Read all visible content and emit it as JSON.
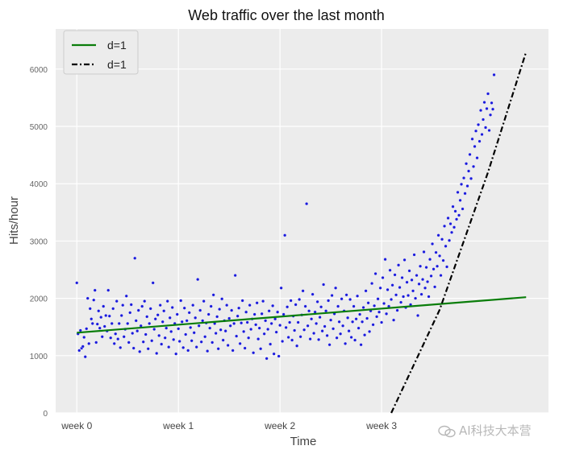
{
  "chart_data": {
    "type": "scatter",
    "title": "Web traffic over the last month",
    "xlabel": "Time",
    "ylabel": "Hits/hour",
    "x_ticks": [
      {
        "value": 0,
        "label": "week 0"
      },
      {
        "value": 168,
        "label": "week 1"
      },
      {
        "value": 336,
        "label": "week 2"
      },
      {
        "value": 504,
        "label": "week 3"
      }
    ],
    "y_ticks": [
      0,
      1000,
      2000,
      3000,
      4000,
      5000,
      6000
    ],
    "xlim": [
      -35,
      780
    ],
    "ylim": [
      0,
      6700
    ],
    "grid": true,
    "legend_position": "top-left",
    "scatter_color": "#1a1adb",
    "points": [
      [
        0,
        2270
      ],
      [
        2,
        1380
      ],
      [
        4,
        1090
      ],
      [
        6,
        1440
      ],
      [
        8,
        1130
      ],
      [
        10,
        1160
      ],
      [
        12,
        1320
      ],
      [
        14,
        980
      ],
      [
        16,
        1470
      ],
      [
        18,
        2000
      ],
      [
        20,
        1210
      ],
      [
        22,
        1820
      ],
      [
        24,
        1640
      ],
      [
        26,
        1560
      ],
      [
        28,
        1970
      ],
      [
        30,
        2140
      ],
      [
        32,
        1230
      ],
      [
        34,
        1550
      ],
      [
        36,
        1780
      ],
      [
        38,
        1480
      ],
      [
        40,
        1670
      ],
      [
        42,
        1330
      ],
      [
        44,
        1860
      ],
      [
        46,
        1510
      ],
      [
        48,
        1700
      ],
      [
        50,
        1430
      ],
      [
        52,
        2140
      ],
      [
        54,
        1690
      ],
      [
        56,
        1310
      ],
      [
        58,
        1560
      ],
      [
        60,
        1820
      ],
      [
        62,
        1210
      ],
      [
        64,
        1380
      ],
      [
        66,
        1950
      ],
      [
        68,
        1290
      ],
      [
        70,
        1560
      ],
      [
        72,
        1140
      ],
      [
        74,
        1700
      ],
      [
        76,
        1880
      ],
      [
        78,
        1330
      ],
      [
        80,
        1460
      ],
      [
        82,
        2040
      ],
      [
        84,
        1560
      ],
      [
        86,
        1230
      ],
      [
        88,
        1750
      ],
      [
        90,
        1890
      ],
      [
        92,
        1390
      ],
      [
        94,
        1130
      ],
      [
        96,
        2700
      ],
      [
        98,
        1610
      ],
      [
        100,
        1430
      ],
      [
        102,
        1790
      ],
      [
        104,
        1070
      ],
      [
        106,
        1520
      ],
      [
        108,
        1860
      ],
      [
        110,
        1240
      ],
      [
        112,
        1950
      ],
      [
        114,
        1370
      ],
      [
        116,
        1680
      ],
      [
        118,
        1120
      ],
      [
        120,
        1560
      ],
      [
        122,
        1820
      ],
      [
        124,
        1260
      ],
      [
        126,
        2270
      ],
      [
        128,
        1460
      ],
      [
        130,
        1640
      ],
      [
        132,
        1040
      ],
      [
        134,
        1710
      ],
      [
        136,
        1350
      ],
      [
        138,
        1880
      ],
      [
        140,
        1200
      ],
      [
        142,
        1590
      ],
      [
        144,
        1780
      ],
      [
        146,
        1310
      ],
      [
        148,
        1480
      ],
      [
        150,
        1950
      ],
      [
        152,
        1150
      ],
      [
        154,
        1660
      ],
      [
        156,
        1420
      ],
      [
        158,
        1840
      ],
      [
        160,
        1280
      ],
      [
        162,
        1560
      ],
      [
        164,
        1030
      ],
      [
        166,
        1720
      ],
      [
        168,
        1470
      ],
      [
        170,
        1250
      ],
      [
        172,
        1960
      ],
      [
        174,
        1590
      ],
      [
        176,
        1140
      ],
      [
        178,
        1830
      ],
      [
        180,
        1370
      ],
      [
        182,
        1610
      ],
      [
        184,
        1090
      ],
      [
        186,
        1750
      ],
      [
        188,
        1490
      ],
      [
        190,
        1260
      ],
      [
        192,
        1880
      ],
      [
        194,
        1400
      ],
      [
        196,
        1660
      ],
      [
        198,
        1150
      ],
      [
        200,
        2330
      ],
      [
        202,
        1520
      ],
      [
        204,
        1790
      ],
      [
        206,
        1240
      ],
      [
        208,
        1610
      ],
      [
        210,
        1950
      ],
      [
        212,
        1330
      ],
      [
        214,
        1570
      ],
      [
        216,
        1080
      ],
      [
        218,
        1720
      ],
      [
        220,
        1480
      ],
      [
        222,
        1860
      ],
      [
        224,
        1230
      ],
      [
        226,
        2060
      ],
      [
        228,
        1560
      ],
      [
        230,
        1390
      ],
      [
        232,
        1680
      ],
      [
        234,
        1120
      ],
      [
        236,
        1810
      ],
      [
        238,
        1450
      ],
      [
        240,
        1990
      ],
      [
        242,
        1270
      ],
      [
        244,
        1610
      ],
      [
        246,
        1430
      ],
      [
        248,
        1880
      ],
      [
        250,
        1180
      ],
      [
        252,
        1650
      ],
      [
        254,
        1520
      ],
      [
        256,
        1790
      ],
      [
        258,
        1090
      ],
      [
        260,
        1560
      ],
      [
        262,
        2400
      ],
      [
        264,
        1340
      ],
      [
        266,
        1690
      ],
      [
        268,
        1830
      ],
      [
        270,
        1210
      ],
      [
        272,
        1570
      ],
      [
        274,
        1960
      ],
      [
        276,
        1420
      ],
      [
        278,
        1130
      ],
      [
        280,
        1760
      ],
      [
        282,
        1580
      ],
      [
        284,
        1310
      ],
      [
        286,
        1880
      ],
      [
        288,
        1460
      ],
      [
        290,
        1640
      ],
      [
        292,
        1050
      ],
      [
        294,
        1720
      ],
      [
        296,
        1540
      ],
      [
        298,
        1920
      ],
      [
        300,
        1290
      ],
      [
        302,
        1480
      ],
      [
        304,
        1120
      ],
      [
        306,
        1730
      ],
      [
        308,
        1950
      ],
      [
        310,
        1380
      ],
      [
        312,
        1610
      ],
      [
        314,
        950
      ],
      [
        316,
        1460
      ],
      [
        318,
        1780
      ],
      [
        320,
        1200
      ],
      [
        322,
        1560
      ],
      [
        324,
        1870
      ],
      [
        326,
        1030
      ],
      [
        328,
        1640
      ],
      [
        330,
        1410
      ],
      [
        332,
        1760
      ],
      [
        334,
        990
      ],
      [
        336,
        1530
      ],
      [
        338,
        2180
      ],
      [
        340,
        1250
      ],
      [
        342,
        1720
      ],
      [
        344,
        3100
      ],
      [
        346,
        1490
      ],
      [
        348,
        1850
      ],
      [
        350,
        1320
      ],
      [
        352,
        1580
      ],
      [
        354,
        1960
      ],
      [
        356,
        1270
      ],
      [
        358,
        1690
      ],
      [
        360,
        1440
      ],
      [
        362,
        1890
      ],
      [
        364,
        1170
      ],
      [
        366,
        1580
      ],
      [
        368,
        1980
      ],
      [
        370,
        1330
      ],
      [
        372,
        1710
      ],
      [
        374,
        2130
      ],
      [
        376,
        1450
      ],
      [
        378,
        1860
      ],
      [
        380,
        3650
      ],
      [
        382,
        1520
      ],
      [
        384,
        1780
      ],
      [
        386,
        1290
      ],
      [
        388,
        1640
      ],
      [
        390,
        2070
      ],
      [
        392,
        1390
      ],
      [
        394,
        1760
      ],
      [
        396,
        1560
      ],
      [
        398,
        1940
      ],
      [
        400,
        1280
      ],
      [
        402,
        1670
      ],
      [
        404,
        1850
      ],
      [
        406,
        1430
      ],
      [
        408,
        2240
      ],
      [
        410,
        1510
      ],
      [
        412,
        1780
      ],
      [
        414,
        1350
      ],
      [
        416,
        1960
      ],
      [
        418,
        1190
      ],
      [
        420,
        1620
      ],
      [
        422,
        2050
      ],
      [
        424,
        1470
      ],
      [
        426,
        1730
      ],
      [
        428,
        2180
      ],
      [
        430,
        1310
      ],
      [
        432,
        1860
      ],
      [
        434,
        1590
      ],
      [
        436,
        1380
      ],
      [
        438,
        1990
      ],
      [
        440,
        1520
      ],
      [
        442,
        1780
      ],
      [
        444,
        1210
      ],
      [
        446,
        2060
      ],
      [
        448,
        1660
      ],
      [
        450,
        1430
      ],
      [
        452,
        1980
      ],
      [
        454,
        1320
      ],
      [
        456,
        1590
      ],
      [
        458,
        1860
      ],
      [
        460,
        1270
      ],
      [
        462,
        1640
      ],
      [
        464,
        2040
      ],
      [
        466,
        1480
      ],
      [
        468,
        1720
      ],
      [
        470,
        1190
      ],
      [
        472,
        1590
      ],
      [
        474,
        1840
      ],
      [
        476,
        1360
      ],
      [
        478,
        2130
      ],
      [
        480,
        1650
      ],
      [
        482,
        1920
      ],
      [
        484,
        1420
      ],
      [
        486,
        1780
      ],
      [
        488,
        2260
      ],
      [
        490,
        1540
      ],
      [
        492,
        1870
      ],
      [
        494,
        2430
      ],
      [
        496,
        1680
      ],
      [
        498,
        1990
      ],
      [
        500,
        1760
      ],
      [
        502,
        2180
      ],
      [
        504,
        1580
      ],
      [
        506,
        2360
      ],
      [
        508,
        1910
      ],
      [
        510,
        2680
      ],
      [
        512,
        1730
      ],
      [
        514,
        2150
      ],
      [
        516,
        1860
      ],
      [
        518,
        2490
      ],
      [
        520,
        1980
      ],
      [
        522,
        2230
      ],
      [
        524,
        1620
      ],
      [
        526,
        2410
      ],
      [
        528,
        2060
      ],
      [
        530,
        1790
      ],
      [
        532,
        2580
      ],
      [
        534,
        2190
      ],
      [
        536,
        1930
      ],
      [
        538,
        2360
      ],
      [
        540,
        2030
      ],
      [
        542,
        2670
      ],
      [
        544,
        1840
      ],
      [
        546,
        2280
      ],
      [
        548,
        2050
      ],
      [
        550,
        2480
      ],
      [
        552,
        1890
      ],
      [
        554,
        2320
      ],
      [
        556,
        2130
      ],
      [
        558,
        2760
      ],
      [
        560,
        2000
      ],
      [
        562,
        2400
      ],
      [
        564,
        1700
      ],
      [
        566,
        2250
      ],
      [
        568,
        2560
      ],
      [
        570,
        2070
      ],
      [
        572,
        2330
      ],
      [
        574,
        2810
      ],
      [
        576,
        2180
      ],
      [
        578,
        2540
      ],
      [
        580,
        2290
      ],
      [
        582,
        2030
      ],
      [
        584,
        2680
      ],
      [
        586,
        2390
      ],
      [
        588,
        2950
      ],
      [
        590,
        2510
      ],
      [
        592,
        2200
      ],
      [
        594,
        2800
      ],
      [
        596,
        2560
      ],
      [
        598,
        3100
      ],
      [
        600,
        2740
      ],
      [
        602,
        2400
      ],
      [
        604,
        3030
      ],
      [
        606,
        2660
      ],
      [
        608,
        3260
      ],
      [
        610,
        2910
      ],
      [
        612,
        2550
      ],
      [
        614,
        3400
      ],
      [
        616,
        3010
      ],
      [
        618,
        3300
      ],
      [
        620,
        3150
      ],
      [
        622,
        3600
      ],
      [
        624,
        3240
      ],
      [
        626,
        3520
      ],
      [
        628,
        3380
      ],
      [
        630,
        3850
      ],
      [
        632,
        3450
      ],
      [
        634,
        3710
      ],
      [
        636,
        3990
      ],
      [
        638,
        3560
      ],
      [
        640,
        4100
      ],
      [
        642,
        3830
      ],
      [
        644,
        4350
      ],
      [
        646,
        3960
      ],
      [
        648,
        4220
      ],
      [
        650,
        4510
      ],
      [
        652,
        4090
      ],
      [
        654,
        4780
      ],
      [
        656,
        4300
      ],
      [
        658,
        4650
      ],
      [
        660,
        4920
      ],
      [
        662,
        4450
      ],
      [
        664,
        5030
      ],
      [
        666,
        4740
      ],
      [
        668,
        5280
      ],
      [
        670,
        4860
      ],
      [
        672,
        5120
      ],
      [
        674,
        5420
      ],
      [
        676,
        4980
      ],
      [
        678,
        5310
      ],
      [
        680,
        5570
      ],
      [
        682,
        4930
      ],
      [
        684,
        5200
      ],
      [
        686,
        5410
      ],
      [
        688,
        5300
      ],
      [
        690,
        5900
      ]
    ],
    "series": [
      {
        "name": "d=1",
        "type": "line",
        "color": "#0a7d0a",
        "style": "solid",
        "x": [
          0,
          743
        ],
        "y": [
          1400,
          2020
        ]
      },
      {
        "name": "d=1",
        "type": "line",
        "color": "#000000",
        "style": "dashdot",
        "x": [
          520,
          600,
          680,
          743
        ],
        "y": [
          0,
          1800,
          4200,
          6300
        ]
      }
    ]
  },
  "watermark": {
    "text": "AI科技大本营"
  }
}
